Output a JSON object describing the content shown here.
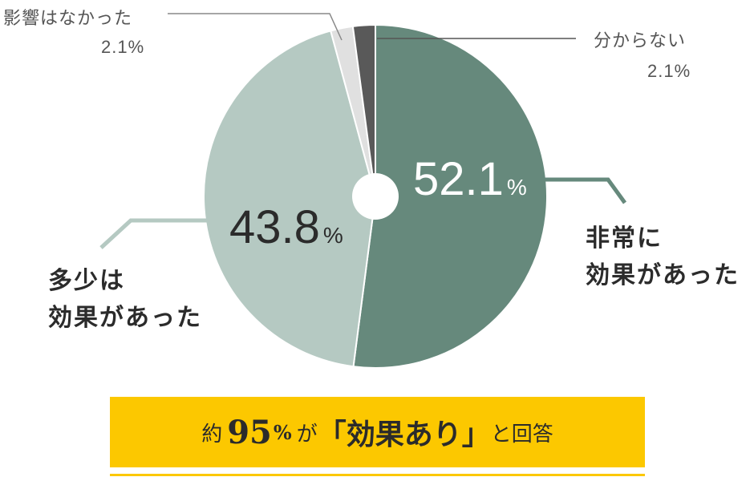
{
  "chart_data": {
    "type": "pie",
    "slices": [
      {
        "label": "非常に効果があった",
        "value": 52.1,
        "color": "#66897c"
      },
      {
        "label": "多少は効果があった",
        "value": 43.8,
        "color": "#b5c9c2"
      },
      {
        "label": "影響はなかった",
        "value": 2.1,
        "color": "#e0e0e0"
      },
      {
        "label": "分からない",
        "value": 2.1,
        "color": "#595959"
      }
    ],
    "start": "top, clockwise",
    "center_hole": true
  },
  "labels": {
    "very_effective": {
      "line1": "非常に",
      "line2": "効果があった",
      "pct": "52.1",
      "unit": "%"
    },
    "somewhat_effective": {
      "line1": "多少は",
      "line2": "効果があった",
      "pct": "43.8",
      "unit": "%"
    },
    "no_effect": {
      "text": "影響はなかった",
      "pct": "2.1%"
    },
    "unknown": {
      "text": "分からない",
      "pct": "2.1%"
    }
  },
  "banner": {
    "prefix": "約",
    "number": "95",
    "percent": "%",
    "particle": "が",
    "quote_open": "「",
    "phrase": "効果あり",
    "quote_close": "」",
    "suffix": "と回答",
    "bg_color": "#fcc800",
    "line_color": "#fcc800"
  }
}
